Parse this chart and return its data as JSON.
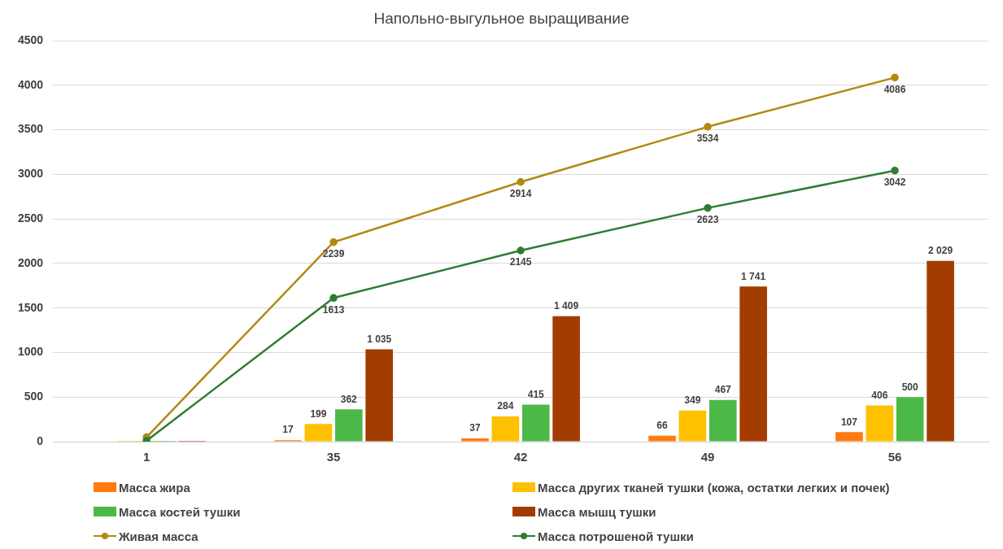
{
  "chart_data": {
    "type": "bar",
    "title": "Напольно-выгульное  выращивание",
    "categories": [
      "1",
      "35",
      "42",
      "49",
      "56"
    ],
    "series": [
      {
        "name": "Масса жира",
        "color": "#ff7a10",
        "values": [
          null,
          17,
          37,
          66,
          107
        ],
        "value_labels": [
          null,
          "17",
          "37",
          "66",
          "107"
        ]
      },
      {
        "name": "Масса других тканей тушки (кожа, остатки легких и почек)",
        "color": "#ffc000",
        "values": [
          10,
          199,
          284,
          349,
          406
        ],
        "value_labels": [
          null,
          "199",
          "284",
          "349",
          "406"
        ]
      },
      {
        "name": "Масса костей тушки",
        "color": "#4cb848",
        "values": [
          10,
          362,
          415,
          467,
          500
        ],
        "value_labels": [
          null,
          "362",
          "415",
          "467",
          "500"
        ]
      },
      {
        "name": "Масса мышц тушки",
        "color": "#a33c00",
        "values": [
          10,
          1035,
          1409,
          1741,
          2029
        ],
        "value_labels": [
          null,
          "1 035",
          "1 409",
          "1 741",
          "2 029"
        ]
      },
      {
        "name": "Живая масса",
        "type": "line",
        "color": "#b08a12",
        "values": [
          50,
          2239,
          2914,
          3534,
          4086
        ],
        "value_labels": [
          null,
          "2239",
          "2914",
          "3534",
          "4086"
        ]
      },
      {
        "name": "Масса потрошеной тушки",
        "type": "line",
        "color": "#2e7d32",
        "values": [
          10,
          1613,
          2145,
          2623,
          3042
        ],
        "value_labels": [
          null,
          "1613",
          "2145",
          "2623",
          "3042"
        ]
      }
    ],
    "ylim": [
      0,
      4500
    ],
    "yticks": [
      0,
      500,
      1000,
      1500,
      2000,
      2500,
      3000,
      3500,
      4000,
      4500
    ],
    "grid": "y",
    "legend": "bottom",
    "marker": "circle"
  }
}
